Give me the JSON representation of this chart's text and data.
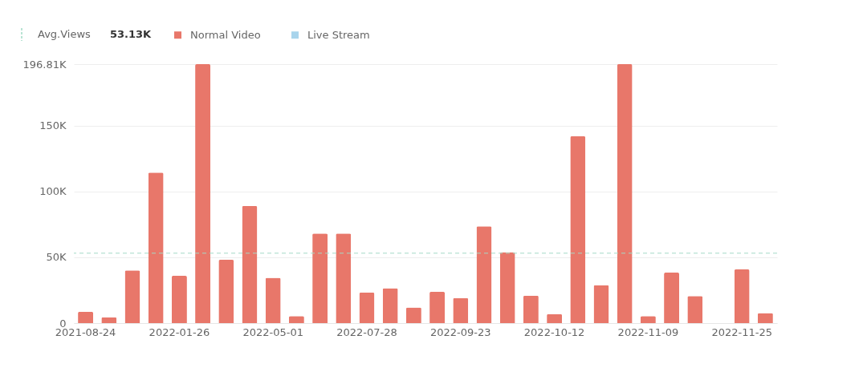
{
  "chart_data": {
    "type": "bar",
    "stacked": true,
    "categories": [
      "2021-08-24",
      null,
      null,
      null,
      "2022-01-26",
      null,
      null,
      null,
      "2022-05-01",
      null,
      null,
      null,
      "2022-07-28",
      null,
      null,
      null,
      "2022-09-23",
      null,
      null,
      null,
      "2022-10-12",
      null,
      null,
      null,
      "2022-11-09",
      null,
      null,
      null,
      "2022-11-25",
      null
    ],
    "series": [
      {
        "name": "Normal Video",
        "color": "#e8776a",
        "values": [
          8600,
          4400,
          40100,
          114400,
          35900,
          196810,
          48100,
          89000,
          34500,
          5400,
          68100,
          68100,
          23200,
          26500,
          11900,
          23800,
          19000,
          73500,
          53900,
          20800,
          6900,
          142000,
          28800,
          196810,
          5300,
          38400,
          20600,
          null,
          40800,
          7600
        ]
      },
      {
        "name": "Live Stream",
        "color": "#a8d4ec",
        "values": [
          null,
          null,
          null,
          null,
          null,
          null,
          null,
          null,
          null,
          null,
          null,
          null,
          null,
          null,
          null,
          null,
          null,
          null,
          null,
          null,
          null,
          null,
          null,
          null,
          null,
          null,
          null,
          null,
          null,
          null
        ]
      }
    ],
    "ylim": [
      0,
      196810
    ],
    "yticks": [
      0,
      {
        "value": 50000,
        "label": "50K"
      },
      {
        "value": 100000,
        "label": "100K"
      },
      {
        "value": 150000,
        "label": "150K"
      },
      {
        "value": 196810,
        "label": "196.81K"
      }
    ],
    "ref_lines": [
      {
        "axis": "y",
        "value": 53130,
        "label": "Avg.Views",
        "color": "#a3dbc6",
        "line_style": "dashed"
      }
    ],
    "annotations": [
      "53.13K"
    ],
    "grid": "y",
    "legend": "top left"
  }
}
